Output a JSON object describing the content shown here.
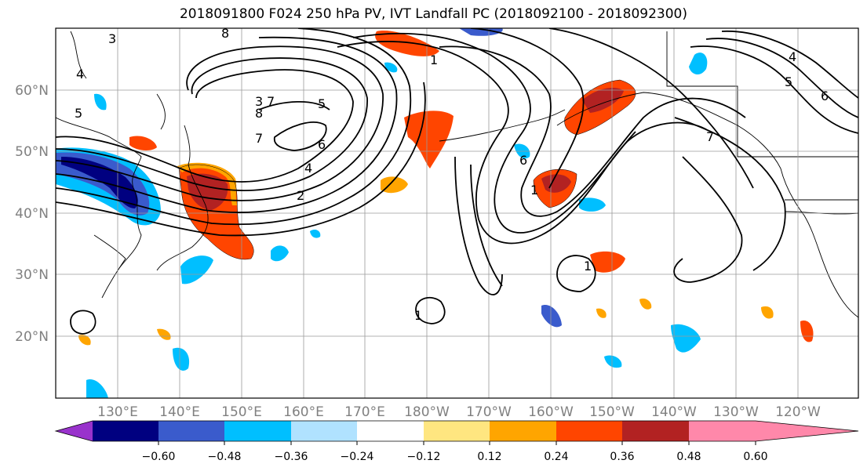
{
  "title": "2018091800 F024 250 hPa PV, IVT Landfall PC (2018092100 - 2018092300)",
  "map": {
    "lon_ticks": [
      "130°E",
      "140°E",
      "150°E",
      "160°E",
      "170°E",
      "180°W",
      "170°W",
      "160°W",
      "150°W",
      "140°W",
      "130°W",
      "120°W"
    ],
    "lat_ticks": [
      "60°N",
      "50°N",
      "40°N",
      "30°N",
      "20°N"
    ],
    "pv_contour_labels": [
      "3",
      "8",
      "4",
      "5",
      "3",
      "8",
      "7",
      "6",
      "4",
      "2",
      "7",
      "1",
      "6",
      "5",
      "1",
      "4",
      "7",
      "5",
      "6",
      "1",
      "1"
    ]
  },
  "colorbar": {
    "tick_labels": [
      "−0.60",
      "−0.48",
      "−0.36",
      "−0.24",
      "−0.12",
      "0.12",
      "0.24",
      "0.36",
      "0.48",
      "0.60"
    ],
    "colors": [
      "#9932cc",
      "#000080",
      "#3a5bcc",
      "#00bfff",
      "#b0e2ff",
      "#ffffff",
      "#ffe680",
      "#ffa500",
      "#ff4500",
      "#b22222",
      "#ff88aa"
    ]
  }
}
